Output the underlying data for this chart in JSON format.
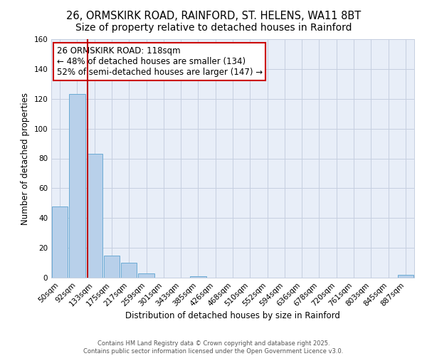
{
  "title1": "26, ORMSKIRK ROAD, RAINFORD, ST. HELENS, WA11 8BT",
  "title2": "Size of property relative to detached houses in Rainford",
  "xlabel": "Distribution of detached houses by size in Rainford",
  "ylabel": "Number of detached properties",
  "bin_labels": [
    "50sqm",
    "92sqm",
    "133sqm",
    "175sqm",
    "217sqm",
    "259sqm",
    "301sqm",
    "343sqm",
    "385sqm",
    "426sqm",
    "468sqm",
    "510sqm",
    "552sqm",
    "594sqm",
    "636sqm",
    "678sqm",
    "720sqm",
    "761sqm",
    "803sqm",
    "845sqm",
    "887sqm"
  ],
  "bar_values": [
    48,
    123,
    83,
    15,
    10,
    3,
    0,
    0,
    1,
    0,
    0,
    0,
    0,
    0,
    0,
    0,
    0,
    0,
    0,
    0,
    2
  ],
  "bar_color": "#b8d0ea",
  "bar_edge_color": "#6aaad4",
  "bg_color": "#ffffff",
  "plot_bg_color": "#e8eef8",
  "grid_color": "#c5cfe0",
  "red_line_x": 1.62,
  "red_line_color": "#bb0000",
  "annotation_text": "26 ORMSKIRK ROAD: 118sqm\n← 48% of detached houses are smaller (134)\n52% of semi-detached houses are larger (147) →",
  "annotation_box_color": "#ffffff",
  "annotation_edge_color": "#cc0000",
  "footnote1": "Contains HM Land Registry data © Crown copyright and database right 2025.",
  "footnote2": "Contains public sector information licensed under the Open Government Licence v3.0.",
  "ylim": [
    0,
    160
  ],
  "yticks": [
    0,
    20,
    40,
    60,
    80,
    100,
    120,
    140,
    160
  ],
  "title_fontsize": 10.5,
  "axis_label_fontsize": 8.5,
  "tick_fontsize": 7.5,
  "annotation_fontsize": 8.5
}
